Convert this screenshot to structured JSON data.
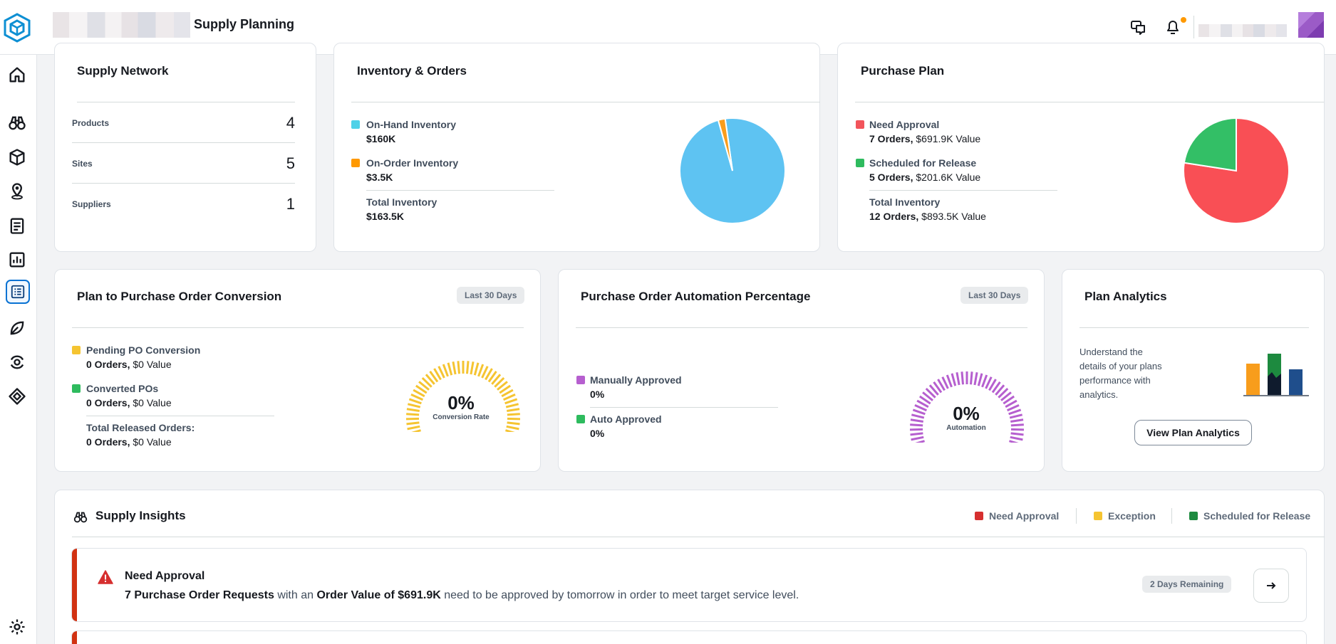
{
  "header": {
    "app_title": "Supply Planning",
    "icons": [
      "logo-icon",
      "chat-icon",
      "bell-icon"
    ]
  },
  "sidebar": {
    "items": [
      "home-icon",
      "binoculars-icon",
      "box-icon",
      "location-icon",
      "clipboard-icon",
      "bar-chart-icon",
      "list-icon",
      "leaf-icon",
      "cycle-icon",
      "diamond-icon",
      "settings-icon"
    ],
    "active": "list-icon"
  },
  "supply_network": {
    "title": "Supply Network",
    "rows": [
      {
        "label": "Products",
        "value": "4"
      },
      {
        "label": "Sites",
        "value": "5"
      },
      {
        "label": "Suppliers",
        "value": "1"
      }
    ]
  },
  "inventory_orders": {
    "title": "Inventory & Orders",
    "items": [
      {
        "label": "On-Hand Inventory",
        "value": "$160K",
        "color": "#4fd1e8"
      },
      {
        "label": "On-Order Inventory",
        "value": "$3.5K",
        "color": "#ff9900"
      }
    ],
    "total_label": "Total Inventory",
    "total_value": "$163.5K",
    "pie": {
      "slices": [
        160,
        3.5
      ],
      "colors": [
        "#5ec3f2",
        "#f89d1c"
      ]
    }
  },
  "purchase_plan": {
    "title": "Purchase Plan",
    "items": [
      {
        "label": "Need Approval",
        "orders": "7 Orders,",
        "value": "$691.9K Value",
        "color": "#f2545b"
      },
      {
        "label": "Scheduled for Release",
        "orders": "5 Orders,",
        "value": "$201.6K Value",
        "color": "#2ebb5e"
      }
    ],
    "total_label": "Total Inventory",
    "total_orders": "12 Orders,",
    "total_value": "$893.5K Value",
    "pie": {
      "slices": [
        691.9,
        201.6
      ],
      "colors": [
        "#f94f55",
        "#33bf66"
      ]
    }
  },
  "plan_conversion": {
    "title": "Plan to Purchase Order Conversion",
    "badge": "Last 30 Days",
    "items": [
      {
        "label": "Pending PO Conversion",
        "orders": "0 Orders,",
        "value": "$0 Value",
        "color": "#f5c431"
      },
      {
        "label": "Converted POs",
        "orders": "0 Orders,",
        "value": "$0 Value",
        "color": "#2ebb5e"
      }
    ],
    "total_label": "Total Released Orders:",
    "total_orders": "0 Orders,",
    "total_value": "$0 Value",
    "gauge_value": "0%",
    "gauge_label": "Conversion Rate",
    "gauge_color": "#f5c431"
  },
  "po_automation": {
    "title": "Purchase Order Automation Percentage",
    "badge": "Last 30 Days",
    "items": [
      {
        "label": "Manually Approved",
        "value": "0%",
        "color": "#b65fcf"
      },
      {
        "label": "Auto Approved",
        "value": "0%",
        "color": "#2ebb5e"
      }
    ],
    "gauge_value": "0%",
    "gauge_label": "Automation",
    "gauge_color": "#b65fcf"
  },
  "plan_analytics": {
    "title": "Plan Analytics",
    "description": "Understand the details of your plans performance with analytics.",
    "button": "View Plan Analytics"
  },
  "supply_insights": {
    "title": "Supply Insights",
    "legend": [
      {
        "label": "Need Approval",
        "color": "#d62f2f"
      },
      {
        "label": "Exception",
        "color": "#f5c431"
      },
      {
        "label": "Scheduled for Release",
        "color": "#1d8a3f"
      }
    ],
    "alert": {
      "title": "Need Approval",
      "count_text": "7 Purchase Order Requests",
      "mid_text": " with an ",
      "value_text": "Order Value of $691.9K",
      "tail_text": " need to be approved by tomorrow in order to meet target service level.",
      "badge": "2 Days Remaining"
    }
  }
}
